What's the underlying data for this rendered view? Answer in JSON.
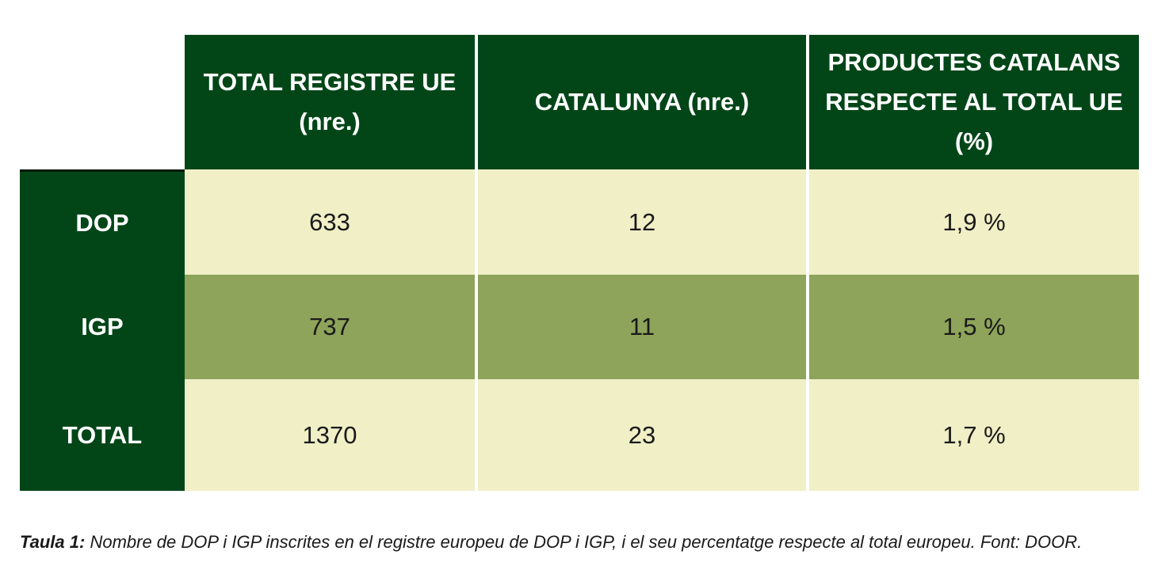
{
  "table": {
    "columns": [
      "TOTAL REGISTRE UE (nre.)",
      "CATALUNYA (nre.)",
      "PRODUCTES CATALANS RESPECTE AL TOTAL UE (%)"
    ],
    "rows": [
      {
        "label": "DOP",
        "values": [
          "633",
          "12",
          "1,9 %"
        ]
      },
      {
        "label": "IGP",
        "values": [
          "737",
          "11",
          "1,5 %"
        ]
      },
      {
        "label": "TOTAL",
        "values": [
          "1370",
          "23",
          "1,7 %"
        ]
      }
    ]
  },
  "caption": {
    "label": "Taula 1:",
    "text": " Nombre de DOP i IGP inscrites en el registre europeu de DOP i IGP, i el seu percentatge respecte al total europeu. Font: DOOR."
  },
  "colors": {
    "header_green": "#024618",
    "row_light": "#f0efc6",
    "row_mid": "#8da45a"
  }
}
